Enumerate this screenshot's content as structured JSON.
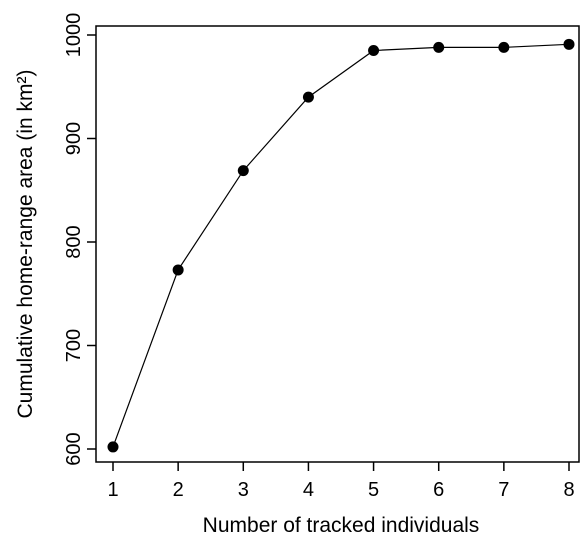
{
  "chart_data": {
    "type": "line",
    "title": "",
    "xlabel": "Number of tracked individuals",
    "ylabel": "Cumulative home-range area (in km²)",
    "x": [
      1,
      2,
      3,
      4,
      5,
      6,
      7,
      8
    ],
    "series": [
      {
        "values": [
          602,
          773,
          869,
          940,
          985,
          988,
          988,
          991
        ]
      }
    ],
    "xlim": [
      1,
      8
    ],
    "ylim": [
      600,
      1000
    ],
    "xticks": [
      "1",
      "2",
      "3",
      "4",
      "5",
      "6",
      "7",
      "8"
    ],
    "yticks": [
      "600",
      "700",
      "800",
      "900",
      "1000"
    ],
    "grid": false,
    "marker": "filled-circle",
    "line_color": "#000000",
    "marker_color": "#000000"
  }
}
